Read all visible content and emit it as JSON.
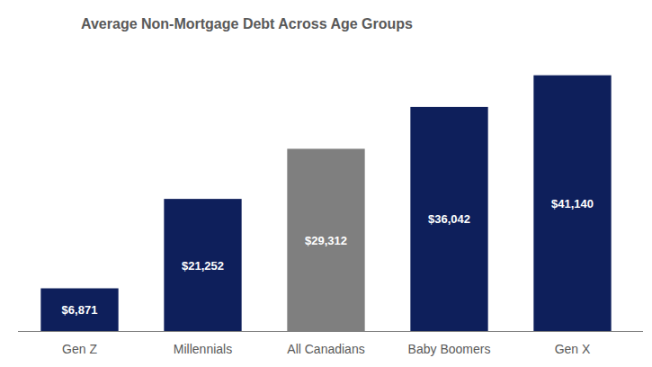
{
  "chart_data": {
    "type": "bar",
    "title": "Average Non-Mortgage Debt Across Age Groups",
    "categories": [
      "Gen Z",
      "Millennials",
      "All Canadians",
      "Baby Boomers",
      "Gen X"
    ],
    "values": [
      6871,
      21252,
      29312,
      36042,
      41140
    ],
    "value_labels": [
      "$6,871",
      "$21,252",
      "$29,312",
      "$36,042",
      "$41,140"
    ],
    "colors": [
      "#0e1f5b",
      "#0e1f5b",
      "#7f7f7f",
      "#0e1f5b",
      "#0e1f5b"
    ],
    "ylim": [
      0,
      45000
    ],
    "data_labels": true,
    "tick_labels": "x",
    "grid": false
  }
}
